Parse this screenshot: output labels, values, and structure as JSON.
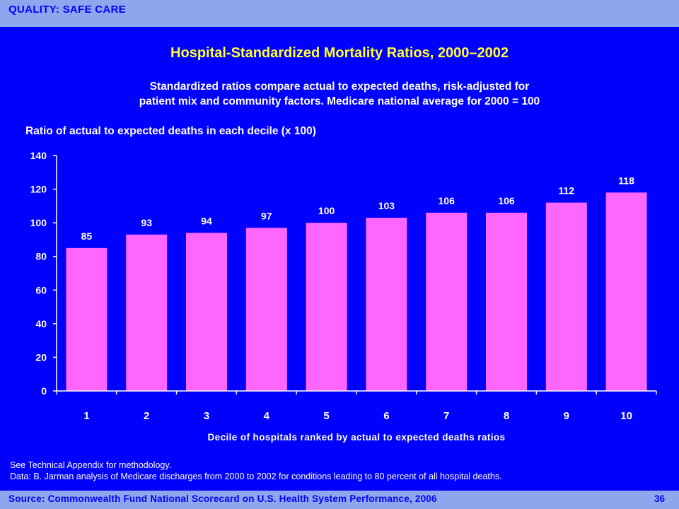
{
  "header": {
    "section": "QUALITY: SAFE CARE"
  },
  "chart_data": {
    "type": "bar",
    "title": "Hospital-Standardized Mortality Ratios, 2000–2002",
    "subtitle_line1": "Standardized ratios compare actual to expected deaths, risk-adjusted for",
    "subtitle_line2": "patient mix and community factors.  Medicare national average for 2000 = 100",
    "ylabel": "Ratio of actual to expected deaths in each decile (x 100)",
    "xlabel": "Decile of hospitals ranked by actual to expected deaths ratios",
    "categories": [
      "1",
      "2",
      "3",
      "4",
      "5",
      "6",
      "7",
      "8",
      "9",
      "10"
    ],
    "values": [
      85,
      93,
      94,
      97,
      100,
      103,
      106,
      106,
      112,
      118
    ],
    "ylim": [
      0,
      140
    ],
    "yticks": [
      0,
      20,
      40,
      60,
      80,
      100,
      120,
      140
    ],
    "grid": false,
    "bar_color": "#ff66ff",
    "background_color": "#0000ff"
  },
  "notes": {
    "line1": "See Technical Appendix for methodology.",
    "line2": "Data: B. Jarman analysis of Medicare discharges from 2000 to 2002 for conditions leading to 80 percent of all hospital deaths."
  },
  "footer": {
    "source": "Source: Commonwealth Fund National Scorecard on U.S. Health System Performance, 2006",
    "page": "36"
  }
}
